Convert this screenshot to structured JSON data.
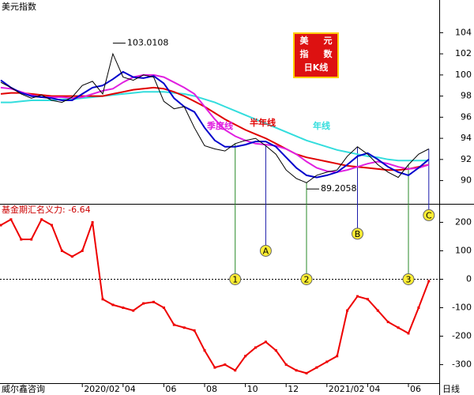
{
  "chart_data": [
    {
      "type": "line",
      "title": "美元指数",
      "categories": [
        null,
        null,
        null,
        null,
        null,
        null,
        null,
        null,
        "2020/02",
        null,
        null,
        null,
        "04",
        null,
        null,
        null,
        "06",
        null,
        null,
        null,
        "08",
        null,
        null,
        null,
        "10",
        null,
        null,
        null,
        "12",
        null,
        null,
        null,
        "2021/02",
        null,
        null,
        null,
        "04",
        null,
        null,
        null,
        "06",
        null,
        null
      ],
      "series": [
        {
          "color": "#000000",
          "values": [
            99.3,
            98.8,
            98.2,
            97.8,
            98.1,
            97.6,
            97.4,
            97.9,
            99.0,
            99.4,
            98.2,
            102.0,
            99.8,
            99.5,
            100.0,
            99.8,
            97.5,
            96.8,
            97.0,
            95.0,
            93.3,
            93.0,
            92.8,
            93.5,
            93.8,
            94.0,
            93.3,
            92.5,
            91.0,
            90.2,
            89.8,
            90.5,
            90.8,
            91.0,
            92.3,
            93.2,
            92.5,
            91.5,
            90.8,
            90.3,
            91.5,
            92.5,
            93.0
          ]
        },
        {
          "color": "#0000cc",
          "values": [
            99.5,
            98.8,
            98.3,
            98.0,
            97.9,
            97.8,
            97.6,
            97.6,
            98.2,
            98.8,
            99.0,
            99.6,
            100.3,
            99.8,
            99.7,
            99.9,
            99.2,
            97.8,
            97.0,
            96.5,
            95.0,
            93.8,
            93.2,
            93.2,
            93.4,
            93.7,
            93.7,
            93.2,
            92.2,
            91.2,
            90.5,
            90.3,
            90.5,
            90.8,
            91.5,
            92.3,
            92.6,
            92.0,
            91.3,
            90.8,
            90.5,
            91.2,
            92.0
          ]
        },
        {
          "name": "季度线",
          "color": "#e020e0",
          "values": [
            98.8,
            98.7,
            98.4,
            98.1,
            97.9,
            97.9,
            97.9,
            97.8,
            97.9,
            98.2,
            98.5,
            98.7,
            99.3,
            99.8,
            100.0,
            100.0,
            99.8,
            99.3,
            98.8,
            98.2,
            97.0,
            95.8,
            94.8,
            94.2,
            93.8,
            93.5,
            93.4,
            93.3,
            93.0,
            92.5,
            91.8,
            91.2,
            90.9,
            90.8,
            91.0,
            91.3,
            91.6,
            91.8,
            91.6,
            91.3,
            91.1,
            91.2,
            91.5
          ]
        },
        {
          "name": "半年线",
          "color": "#e00000",
          "values": [
            98.2,
            98.3,
            98.3,
            98.2,
            98.1,
            98.0,
            98.0,
            98.0,
            98.0,
            98.0,
            98.0,
            98.2,
            98.4,
            98.6,
            98.7,
            98.8,
            98.7,
            98.4,
            98.0,
            97.5,
            97.0,
            96.4,
            95.8,
            95.3,
            94.8,
            94.4,
            94.0,
            93.5,
            93.0,
            92.5,
            92.2,
            92.0,
            91.8,
            91.6,
            91.4,
            91.3,
            91.2,
            91.1,
            91.0,
            91.0,
            91.1,
            91.3,
            91.5
          ]
        },
        {
          "name": "年线",
          "color": "#33dddd",
          "values": [
            97.4,
            97.4,
            97.5,
            97.6,
            97.6,
            97.6,
            97.7,
            97.7,
            97.8,
            97.9,
            98.0,
            98.1,
            98.2,
            98.3,
            98.4,
            98.4,
            98.4,
            98.3,
            98.2,
            98.0,
            97.7,
            97.4,
            97.0,
            96.6,
            96.2,
            95.8,
            95.4,
            95.0,
            94.6,
            94.2,
            93.8,
            93.5,
            93.2,
            92.9,
            92.7,
            92.5,
            92.3,
            92.2,
            92.0,
            91.9,
            91.9,
            91.9,
            91.9
          ]
        }
      ],
      "annotations": [
        103.0108,
        89.2058
      ],
      "legend_box": [
        "美",
        "元",
        "指",
        "数",
        "日K线"
      ],
      "ylim": [
        87.8,
        105.6
      ],
      "yticks": [
        90,
        92,
        94,
        96,
        98,
        100,
        102,
        104
      ]
    },
    {
      "type": "line",
      "title": "基金期汇名义力: -6.64",
      "source": "威尔鑫咨询",
      "x_label": "日线",
      "color": "#ee0000",
      "values": [
        190,
        210,
        140,
        140,
        210,
        190,
        100,
        80,
        100,
        200,
        -70,
        -90,
        -100,
        -110,
        -85,
        -80,
        -100,
        -160,
        -170,
        -180,
        -250,
        -310,
        -300,
        -320,
        -270,
        -240,
        -220,
        -250,
        -300,
        -320,
        -330,
        -310,
        -290,
        -270,
        -110,
        -60,
        -70,
        -110,
        -150,
        -170,
        -190,
        -100,
        -6.64
      ],
      "markers": [
        "1",
        "A",
        "2",
        "B",
        "3",
        "C"
      ],
      "zero_line": true,
      "ylim": [
        -365,
        265
      ],
      "yticks": [
        200,
        100,
        0,
        -100,
        -200,
        -300
      ]
    }
  ]
}
